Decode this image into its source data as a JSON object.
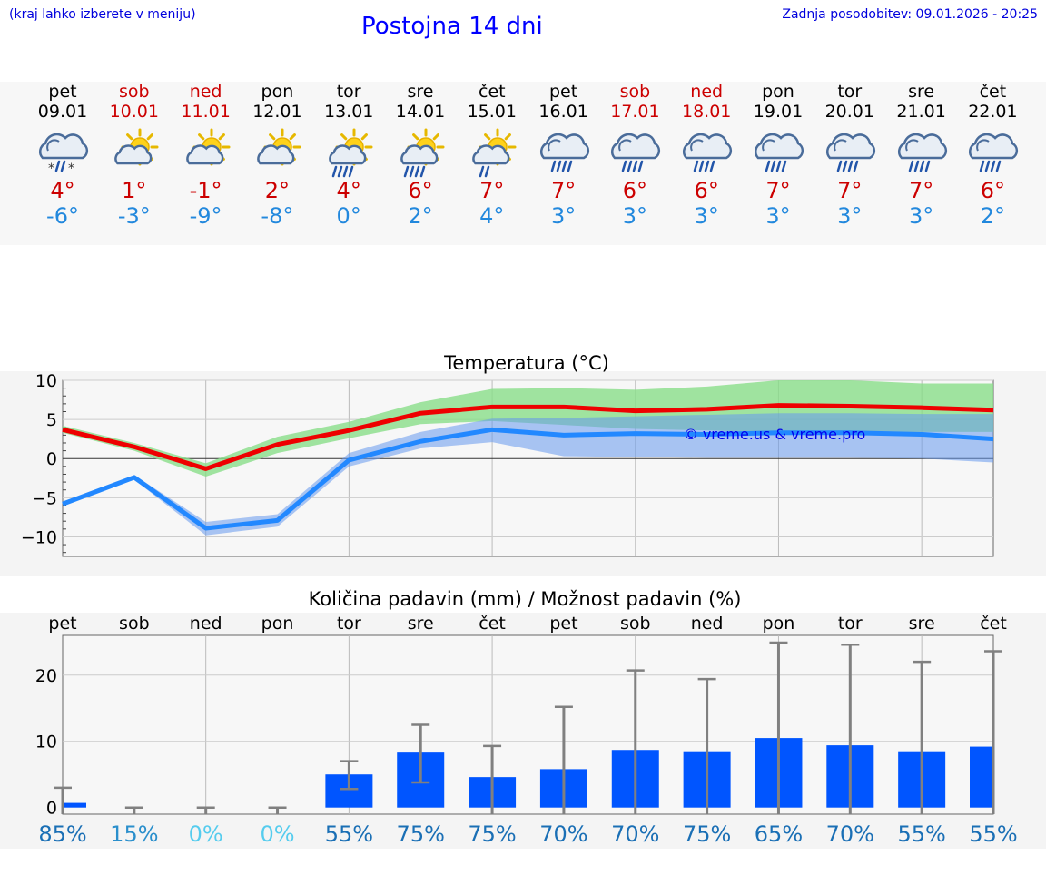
{
  "header": {
    "menu_hint": "(kraj lahko izberete v meniju)",
    "title": "Postojna 14 dni",
    "last_update": "Zadnja posodobitev: 09.01.2026 - 20:25"
  },
  "days": [
    {
      "name": "pet",
      "date": "09.01",
      "tmax": "4°",
      "tmin": "-6°",
      "icon": "cloud-snow-sleet-icon",
      "weekend": false,
      "rain_chance": "85%"
    },
    {
      "name": "sob",
      "date": "10.01",
      "tmax": "1°",
      "tmin": "-3°",
      "icon": "sun-cloud-icon",
      "weekend": true,
      "rain_chance": "15%"
    },
    {
      "name": "ned",
      "date": "11.01",
      "tmax": "-1°",
      "tmin": "-9°",
      "icon": "sun-cloud-icon",
      "weekend": true,
      "rain_chance": "0%"
    },
    {
      "name": "pon",
      "date": "12.01",
      "tmax": "2°",
      "tmin": "-8°",
      "icon": "sun-cloud-icon",
      "weekend": false,
      "rain_chance": "0%"
    },
    {
      "name": "tor",
      "date": "13.01",
      "tmax": "4°",
      "tmin": "0°",
      "icon": "sun-cloud-rain-icon",
      "weekend": false,
      "rain_chance": "55%"
    },
    {
      "name": "sre",
      "date": "14.01",
      "tmax": "6°",
      "tmin": "2°",
      "icon": "sun-cloud-rain-icon",
      "weekend": false,
      "rain_chance": "75%"
    },
    {
      "name": "čet",
      "date": "15.01",
      "tmax": "7°",
      "tmin": "4°",
      "icon": "sun-cloud-light-rain-icon",
      "weekend": false,
      "rain_chance": "75%"
    },
    {
      "name": "pet",
      "date": "16.01",
      "tmax": "7°",
      "tmin": "3°",
      "icon": "cloud-rain-icon",
      "weekend": false,
      "rain_chance": "70%"
    },
    {
      "name": "sob",
      "date": "17.01",
      "tmax": "6°",
      "tmin": "3°",
      "icon": "cloud-rain-icon",
      "weekend": true,
      "rain_chance": "70%"
    },
    {
      "name": "ned",
      "date": "18.01",
      "tmax": "6°",
      "tmin": "3°",
      "icon": "cloud-rain-icon",
      "weekend": true,
      "rain_chance": "75%"
    },
    {
      "name": "pon",
      "date": "19.01",
      "tmax": "7°",
      "tmin": "3°",
      "icon": "cloud-rain-icon",
      "weekend": false,
      "rain_chance": "65%"
    },
    {
      "name": "tor",
      "date": "20.01",
      "tmax": "7°",
      "tmin": "3°",
      "icon": "cloud-rain-icon",
      "weekend": false,
      "rain_chance": "70%"
    },
    {
      "name": "sre",
      "date": "21.01",
      "tmax": "7°",
      "tmin": "3°",
      "icon": "cloud-rain-icon",
      "weekend": false,
      "rain_chance": "55%"
    },
    {
      "name": "čet",
      "date": "22.01",
      "tmax": "6°",
      "tmin": "2°",
      "icon": "cloud-rain-icon",
      "weekend": false,
      "rain_chance": "55%"
    }
  ],
  "colors": {
    "max_line": "#ee0000",
    "max_band": "#88dd88",
    "min_line": "#2288ff",
    "min_band": "#6699ee",
    "bar": "#0055ff",
    "whisker": "#808080",
    "weekend_text": "#cc0000",
    "chance_dark": "#1a6fb5",
    "chance_light": "#55ccee"
  },
  "chart_data": [
    {
      "type": "line",
      "title": "Temperatura (°C)",
      "watermark": "© vreme.us & vreme.pro",
      "ylim": [
        -12.5,
        10
      ],
      "yticks": [
        "10",
        "5",
        "0",
        "−5",
        "−10"
      ],
      "ytick_values": [
        10,
        5,
        0,
        -5,
        -10
      ],
      "series": [
        {
          "name": "max",
          "values": [
            3.7,
            1.5,
            -1.3,
            1.8,
            3.6,
            5.8,
            6.6,
            6.6,
            6.1,
            6.3,
            6.8,
            6.7,
            6.5,
            6.2
          ],
          "band_low": [
            3.3,
            1.0,
            -2.3,
            0.7,
            2.6,
            4.4,
            4.8,
            4.3,
            3.8,
            3.6,
            3.3,
            3.3,
            3.4,
            3.4
          ],
          "band_high": [
            4.2,
            2.0,
            -0.6,
            2.8,
            4.7,
            7.2,
            8.9,
            9.0,
            8.8,
            9.2,
            10.0,
            10.0,
            9.6,
            9.6
          ]
        },
        {
          "name": "min",
          "values": [
            -5.8,
            -2.4,
            -8.9,
            -7.9,
            -0.2,
            2.2,
            3.7,
            3.0,
            3.2,
            3.1,
            3.3,
            3.3,
            3.1,
            2.5
          ],
          "band_low": [
            -5.9,
            -2.7,
            -9.8,
            -8.7,
            -1.0,
            1.3,
            2.1,
            0.3,
            0.2,
            0.1,
            0.1,
            0.1,
            0.0,
            -0.5
          ],
          "band_high": [
            -5.6,
            -2.1,
            -8.1,
            -7.1,
            0.7,
            3.4,
            5.1,
            5.2,
            5.4,
            5.6,
            5.8,
            5.8,
            5.7,
            5.7
          ]
        }
      ]
    },
    {
      "type": "bar",
      "title": "Količina padavin (mm) / Možnost padavin (%)",
      "ylim": [
        -1,
        26
      ],
      "yticks": [
        "20",
        "10",
        "0"
      ],
      "ytick_values": [
        20,
        10,
        0
      ],
      "values": [
        0.7,
        0,
        0,
        0,
        5.0,
        8.3,
        4.6,
        5.8,
        8.7,
        8.5,
        10.5,
        9.4,
        8.5,
        9.2
      ],
      "err_low": [
        0,
        0,
        0,
        0,
        2.8,
        3.8,
        0,
        0,
        0,
        0,
        0,
        0,
        0,
        0
      ],
      "err_high": [
        3.0,
        0,
        0,
        0,
        7.0,
        12.5,
        9.3,
        15.2,
        20.7,
        19.4,
        24.9,
        24.6,
        22.0,
        23.6
      ]
    }
  ]
}
